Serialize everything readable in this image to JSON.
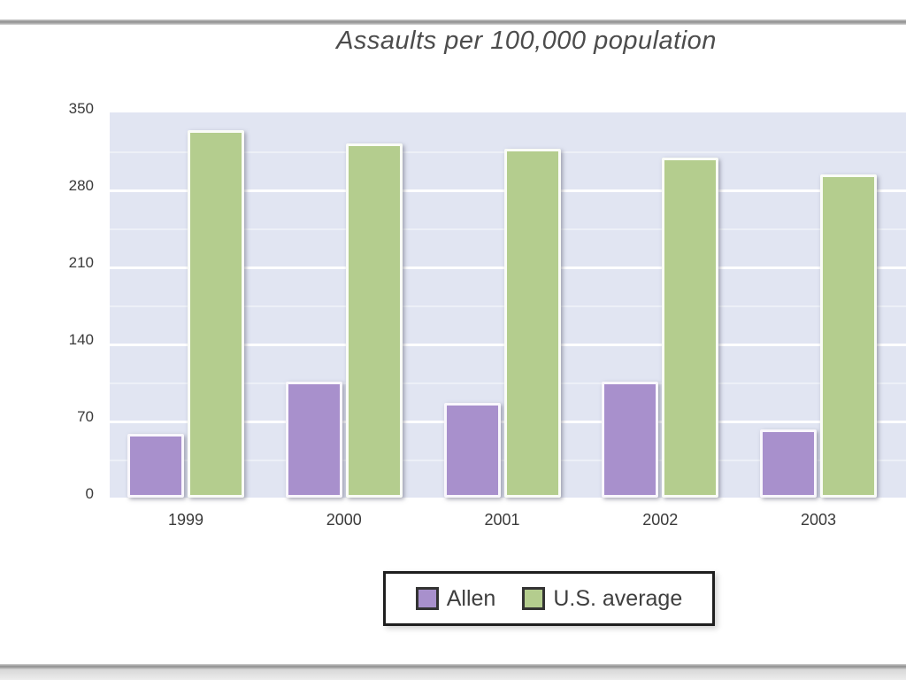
{
  "chart_data": {
    "type": "bar",
    "title": "Assaults per 100,000 population",
    "categories": [
      "1999",
      "2000",
      "2001",
      "2002",
      "2003"
    ],
    "series": [
      {
        "name": "Allen",
        "color": "#a890cc",
        "values": [
          58,
          105,
          86,
          105,
          62
        ]
      },
      {
        "name": "U.S. average",
        "color": "#b4cd8e",
        "values": [
          334,
          322,
          317,
          309,
          294
        ]
      }
    ],
    "xlabel": "",
    "ylabel": "",
    "ylim": [
      0,
      350
    ],
    "yticks": [
      0,
      70,
      140,
      210,
      280,
      350
    ],
    "minor_grid_step": 35,
    "grid": "horizontal",
    "legend_position": "bottom-center",
    "plot_background": "#e1e5f2",
    "gridline_color": "#ffffff",
    "text_color": "#3a3a3a"
  }
}
